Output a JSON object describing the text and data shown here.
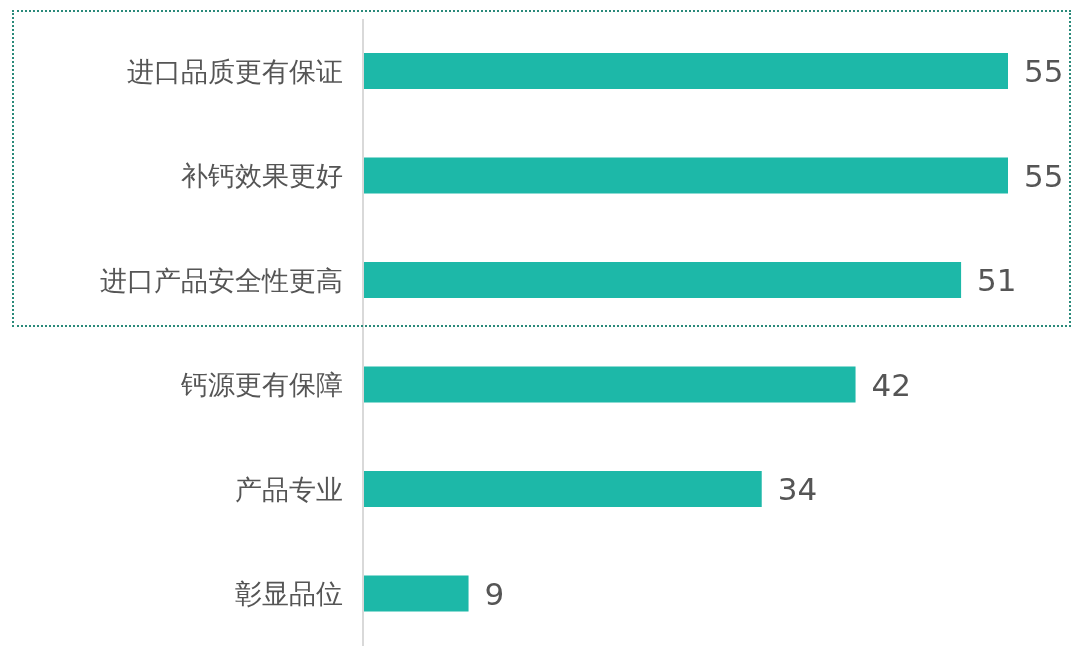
{
  "chart_data": {
    "type": "bar",
    "orientation": "horizontal",
    "categories": [
      "进口品质更有保证",
      "补钙效果更好",
      "进口产品安全性更高",
      "钙源更有保障",
      "产品专业",
      "彰显品位"
    ],
    "values": [
      55,
      55,
      51,
      42,
      34,
      9
    ],
    "color": "#1db8a8",
    "data_labels": true
  }
}
